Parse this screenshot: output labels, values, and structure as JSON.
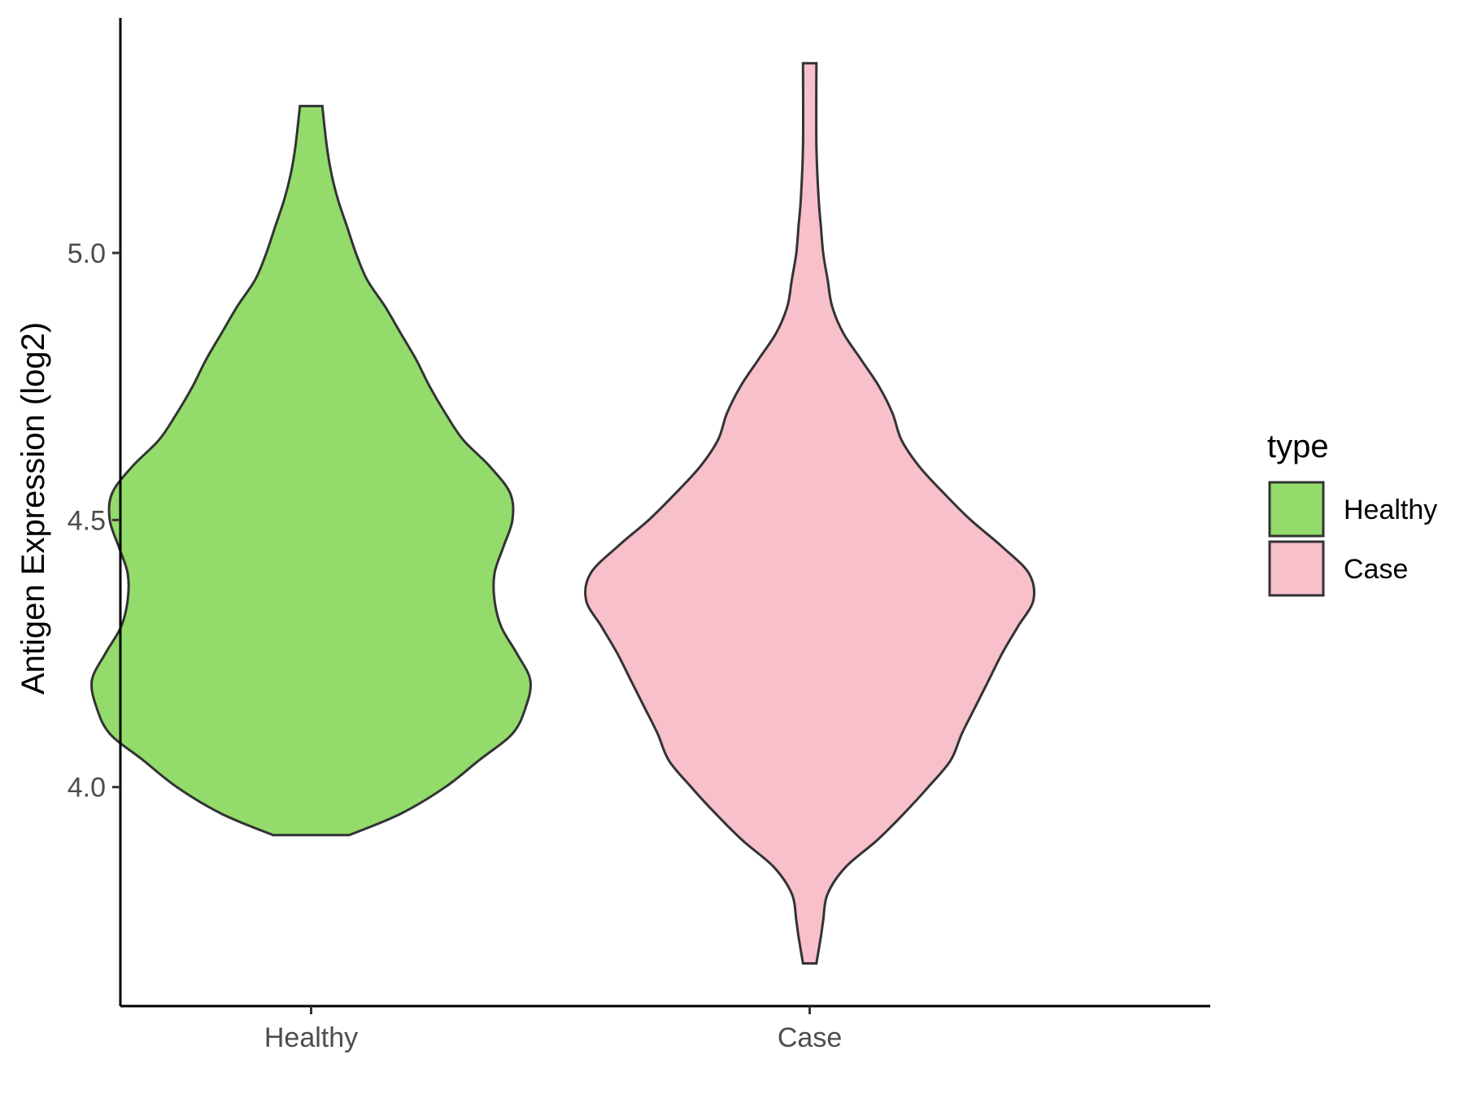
{
  "chart_data": {
    "type": "violin",
    "ylabel": "Antigen Expression (log2)",
    "xlabel": "",
    "categories": [
      "Healthy",
      "Case"
    ],
    "y_ticks": [
      {
        "value": 4.0,
        "label": "4.0"
      },
      {
        "value": 4.5,
        "label": "4.5"
      },
      {
        "value": 5.0,
        "label": "5.0"
      }
    ],
    "ylim": [
      3.59,
      5.44
    ],
    "grid": false,
    "legend": {
      "title": "type",
      "position": "right",
      "items": [
        {
          "label": "Healthy",
          "color": "#93DC6B"
        },
        {
          "label": "Case",
          "color": "#F7C0CB"
        }
      ]
    },
    "series": [
      {
        "name": "Healthy",
        "color": "#93DC6B",
        "min": 3.91,
        "max": 5.275,
        "density": [
          [
            3.91,
            0.17
          ],
          [
            3.95,
            0.4
          ],
          [
            4.0,
            0.6
          ],
          [
            4.05,
            0.75
          ],
          [
            4.1,
            0.9
          ],
          [
            4.15,
            0.96
          ],
          [
            4.2,
            0.98
          ],
          [
            4.25,
            0.92
          ],
          [
            4.3,
            0.85
          ],
          [
            4.35,
            0.82
          ],
          [
            4.4,
            0.82
          ],
          [
            4.45,
            0.86
          ],
          [
            4.5,
            0.9
          ],
          [
            4.55,
            0.89
          ],
          [
            4.6,
            0.8
          ],
          [
            4.65,
            0.68
          ],
          [
            4.7,
            0.6
          ],
          [
            4.75,
            0.53
          ],
          [
            4.8,
            0.47
          ],
          [
            4.85,
            0.4
          ],
          [
            4.9,
            0.33
          ],
          [
            4.95,
            0.25
          ],
          [
            5.0,
            0.2
          ],
          [
            5.05,
            0.16
          ],
          [
            5.1,
            0.12
          ],
          [
            5.15,
            0.09
          ],
          [
            5.2,
            0.07
          ],
          [
            5.275,
            0.05
          ]
        ]
      },
      {
        "name": "Case",
        "color": "#F7C0CB",
        "min": 3.67,
        "max": 5.355,
        "density": [
          [
            3.67,
            0.03
          ],
          [
            3.72,
            0.05
          ],
          [
            3.75,
            0.06
          ],
          [
            3.8,
            0.08
          ],
          [
            3.85,
            0.16
          ],
          [
            3.9,
            0.3
          ],
          [
            3.95,
            0.42
          ],
          [
            4.0,
            0.53
          ],
          [
            4.05,
            0.63
          ],
          [
            4.1,
            0.68
          ],
          [
            4.15,
            0.74
          ],
          [
            4.2,
            0.8
          ],
          [
            4.25,
            0.86
          ],
          [
            4.3,
            0.93
          ],
          [
            4.35,
            1.0
          ],
          [
            4.4,
            0.98
          ],
          [
            4.45,
            0.86
          ],
          [
            4.5,
            0.72
          ],
          [
            4.55,
            0.6
          ],
          [
            4.6,
            0.49
          ],
          [
            4.65,
            0.41
          ],
          [
            4.7,
            0.37
          ],
          [
            4.75,
            0.31
          ],
          [
            4.8,
            0.23
          ],
          [
            4.85,
            0.15
          ],
          [
            4.9,
            0.1
          ],
          [
            4.95,
            0.08
          ],
          [
            5.0,
            0.06
          ],
          [
            5.05,
            0.05
          ],
          [
            5.1,
            0.04
          ],
          [
            5.2,
            0.03
          ],
          [
            5.355,
            0.03
          ]
        ]
      }
    ]
  }
}
